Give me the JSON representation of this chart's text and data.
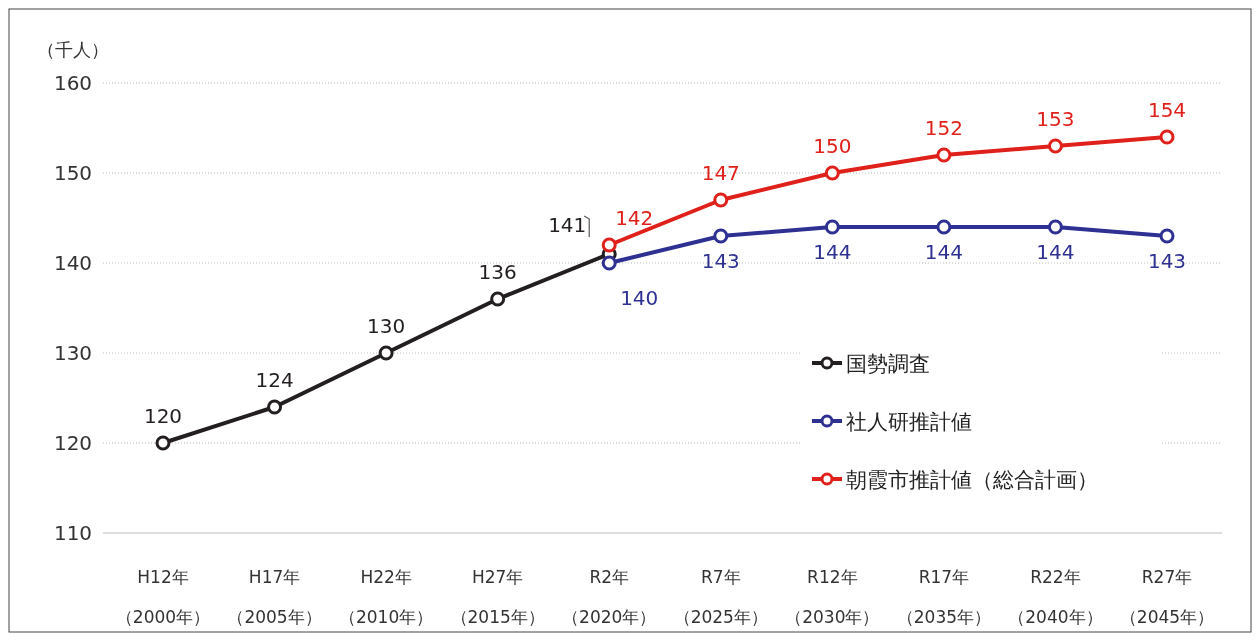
{
  "chart_data": {
    "type": "line",
    "ylabel": "（千人）",
    "categories": [
      "H12年（2000年）",
      "H17年（2005年）",
      "H22年（2010年）",
      "H27年（2015年）",
      "R2年（2020年）",
      "R7年（2025年）",
      "R12年（2030年）",
      "R17年（2035年）",
      "R22年（2040年）",
      "R27年（2045年）"
    ],
    "series": [
      {
        "name": "国勢調査",
        "color": "#231f20",
        "values": [
          120,
          124,
          130,
          136,
          141,
          null,
          null,
          null,
          null,
          null
        ]
      },
      {
        "name": "社人研推計値",
        "color": "#2e3192",
        "values": [
          null,
          null,
          null,
          null,
          140,
          143,
          144,
          144,
          144,
          143
        ]
      },
      {
        "name": "朝霞市推計値（総合計画）",
        "color": "#e0201b",
        "values": [
          null,
          null,
          null,
          null,
          142,
          147,
          150,
          152,
          153,
          154
        ]
      }
    ],
    "ylim": [
      110,
      160
    ],
    "yticks": [
      110,
      120,
      130,
      140,
      150,
      160
    ],
    "grid": "y",
    "legend": "right",
    "marker": "circle",
    "line_style": "solid",
    "data_labels": true
  }
}
